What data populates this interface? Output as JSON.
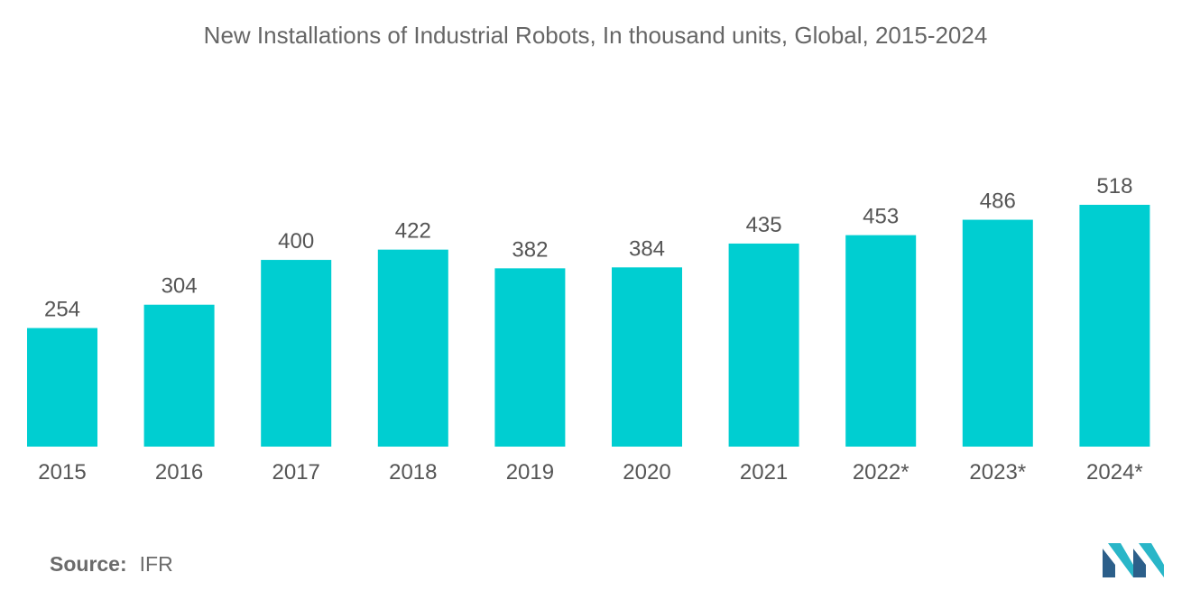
{
  "colors": {
    "bar": "#00ced1",
    "text": "#555555",
    "title": "#666666",
    "logo_dark": "#2c5f8a",
    "logo_light": "#29b6c8"
  },
  "chart_data": {
    "type": "bar",
    "title": "New Installations of Industrial Robots, In thousand units, Global, 2015-2024",
    "categories": [
      "2015",
      "2016",
      "2017",
      "2018",
      "2019",
      "2020",
      "2021",
      "2022*",
      "2023*",
      "2024*"
    ],
    "values": [
      254,
      304,
      400,
      422,
      382,
      384,
      435,
      453,
      486,
      518
    ],
    "xlabel": "",
    "ylabel": "",
    "ylim": [
      0,
      518
    ],
    "grid": false,
    "legend": "none",
    "data_labels": true
  },
  "source": {
    "label": "Source:",
    "value": "IFR"
  },
  "logo": {
    "name": "mordor-intelligence-logo-icon"
  }
}
